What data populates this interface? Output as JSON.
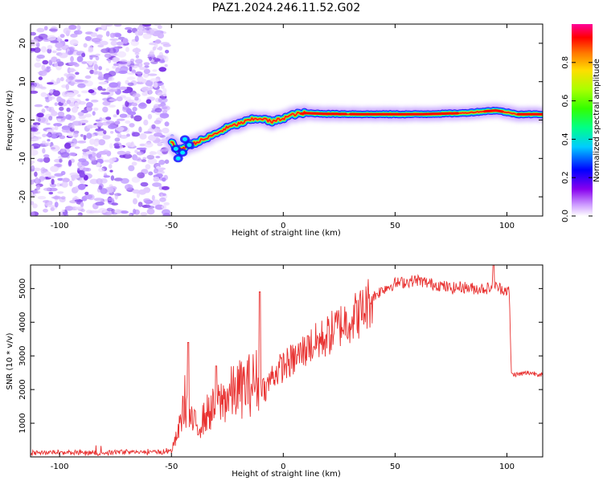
{
  "figure": {
    "title": "PAZ1.2024.246.11.52.G02"
  },
  "chart_data": [
    {
      "type": "heatmap",
      "title": "PAZ1.2024.246.11.52.G02",
      "xlabel": "Height of straight line (km)",
      "ylabel": "Frequency (Hz)",
      "xlim": [
        -113,
        116
      ],
      "ylim": [
        -25,
        25
      ],
      "xticks": [
        -100,
        -50,
        0,
        50,
        100
      ],
      "yticks": [
        -20,
        -10,
        0,
        10,
        20
      ],
      "grid": false,
      "colorbar": {
        "label": "Normalized spectral amplitude",
        "range": [
          0,
          1
        ],
        "ticks": [
          0.0,
          0.2,
          0.4,
          0.6,
          0.8
        ],
        "tick_labels": [
          "0.0",
          "0.2",
          "0.4",
          "0.6",
          "0.8"
        ],
        "colormap": "rainbow (white-violet to magenta-red)"
      },
      "ridge": {
        "description": "main spectral line",
        "points": [
          {
            "x": -50,
            "y": -5.5
          },
          {
            "x": -47,
            "y": -8
          },
          {
            "x": -44,
            "y": -7
          },
          {
            "x": -40,
            "y": -6
          },
          {
            "x": -35,
            "y": -5
          },
          {
            "x": -30,
            "y": -3.5
          },
          {
            "x": -25,
            "y": -2
          },
          {
            "x": -20,
            "y": -1
          },
          {
            "x": -15,
            "y": 0
          },
          {
            "x": -10,
            "y": 0.5
          },
          {
            "x": -5,
            "y": -0.5
          },
          {
            "x": 0,
            "y": 0.5
          },
          {
            "x": 5,
            "y": 1.5
          },
          {
            "x": 10,
            "y": 1.8
          },
          {
            "x": 20,
            "y": 1.6
          },
          {
            "x": 40,
            "y": 1.5
          },
          {
            "x": 60,
            "y": 1.5
          },
          {
            "x": 80,
            "y": 1.8
          },
          {
            "x": 95,
            "y": 2.5
          },
          {
            "x": 105,
            "y": 1.5
          },
          {
            "x": 116,
            "y": 1.5
          }
        ],
        "noise_region_x": [
          -113,
          -52
        ]
      }
    },
    {
      "type": "line",
      "xlabel": "Height of straight line (km)",
      "ylabel": "SNR (10 * v/v)",
      "xlim": [
        -113,
        116
      ],
      "ylim": [
        0,
        5700
      ],
      "xticks": [
        -100,
        -50,
        0,
        50,
        100
      ],
      "yticks": [
        1000,
        2000,
        3000,
        4000,
        5000
      ],
      "grid": false,
      "color": "#e8302f",
      "series": [
        {
          "points": [
            {
              "x": -113,
              "y": 120
            },
            {
              "x": -100,
              "y": 130
            },
            {
              "x": -85,
              "y": 110
            },
            {
              "x": -70,
              "y": 150
            },
            {
              "x": -55,
              "y": 140
            },
            {
              "x": -50,
              "y": 180
            },
            {
              "x": -47,
              "y": 700
            },
            {
              "x": -44,
              "y": 1700
            },
            {
              "x": -42,
              "y": 1100
            },
            {
              "x": -38,
              "y": 900
            },
            {
              "x": -34,
              "y": 1300
            },
            {
              "x": -30,
              "y": 1500
            },
            {
              "x": -25,
              "y": 1800
            },
            {
              "x": -20,
              "y": 2000
            },
            {
              "x": -15,
              "y": 2150
            },
            {
              "x": -11,
              "y": 2300
            },
            {
              "x": -8,
              "y": 2000
            },
            {
              "x": -5,
              "y": 2400
            },
            {
              "x": 0,
              "y": 2700
            },
            {
              "x": 5,
              "y": 2900
            },
            {
              "x": 10,
              "y": 3200
            },
            {
              "x": 15,
              "y": 3400
            },
            {
              "x": 20,
              "y": 3600
            },
            {
              "x": 25,
              "y": 3900
            },
            {
              "x": 30,
              "y": 4100
            },
            {
              "x": 35,
              "y": 4300
            },
            {
              "x": 40,
              "y": 4750
            },
            {
              "x": 45,
              "y": 5000
            },
            {
              "x": 50,
              "y": 5150
            },
            {
              "x": 55,
              "y": 5200
            },
            {
              "x": 60,
              "y": 5250
            },
            {
              "x": 65,
              "y": 5150
            },
            {
              "x": 70,
              "y": 5100
            },
            {
              "x": 75,
              "y": 5000
            },
            {
              "x": 80,
              "y": 5050
            },
            {
              "x": 85,
              "y": 5000
            },
            {
              "x": 90,
              "y": 5000
            },
            {
              "x": 95,
              "y": 5050
            },
            {
              "x": 100,
              "y": 4950
            },
            {
              "x": 101,
              "y": 4900
            },
            {
              "x": 102,
              "y": 2450
            },
            {
              "x": 105,
              "y": 2450
            },
            {
              "x": 110,
              "y": 2500
            },
            {
              "x": 116,
              "y": 2450
            }
          ],
          "spikes": [
            {
              "x": -42.5,
              "y": 3400
            },
            {
              "x": -30,
              "y": 2700
            },
            {
              "x": -10.5,
              "y": 4900
            },
            {
              "x": 11,
              "y": 3600
            },
            {
              "x": 94,
              "y": 5700
            }
          ]
        }
      ]
    }
  ]
}
